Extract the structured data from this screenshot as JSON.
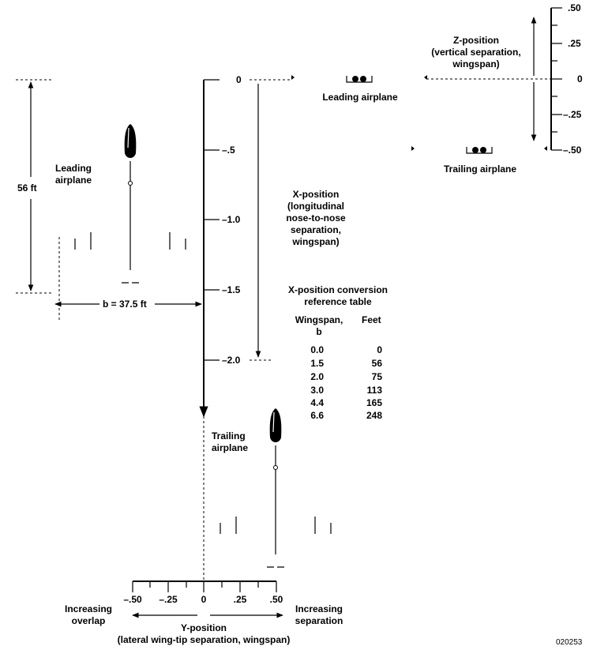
{
  "dimensions": {
    "length": "56 ft",
    "span": "b = 37.5 ft"
  },
  "x_axis": {
    "ticks": [
      "0",
      "–.5",
      "–1.0",
      "–1.5",
      "–2.0"
    ],
    "title_lines": [
      "X-position",
      "(longitudinal",
      "nose-to-nose",
      "separation,",
      "wingspan)"
    ]
  },
  "z_axis": {
    "ticks": [
      ".50",
      ".25",
      "0",
      "–.25",
      "–.50"
    ],
    "title_lines": [
      "Z-position",
      "(vertical separation,",
      "wingspan)"
    ]
  },
  "y_axis": {
    "ticks": [
      "–.50",
      "–.25",
      "0",
      ".25",
      ".50"
    ],
    "title_lines": [
      "Y-position",
      "(lateral wing-tip separation, wingspan)"
    ],
    "left_label_lines": [
      "Increasing",
      "overlap"
    ],
    "right_label_lines": [
      "Increasing",
      "separation"
    ]
  },
  "labels": {
    "leading_top_lines": [
      "Leading",
      "airplane"
    ],
    "trailing_top_lines": [
      "Trailing",
      "airplane"
    ],
    "leading_front": "Leading airplane",
    "trailing_front": "Trailing airplane"
  },
  "table": {
    "title_lines": [
      "X-position conversion",
      "reference table"
    ],
    "col1_lines": [
      "Wingspan,",
      "b"
    ],
    "col2": "Feet",
    "rows": [
      {
        "wingspan": "0.0",
        "feet": "0"
      },
      {
        "wingspan": "1.5",
        "feet": "56"
      },
      {
        "wingspan": "2.0",
        "feet": "75"
      },
      {
        "wingspan": "3.0",
        "feet": "113"
      },
      {
        "wingspan": "4.4",
        "feet": "165"
      },
      {
        "wingspan": "6.6",
        "feet": "248"
      }
    ]
  },
  "figure_id": "020253"
}
